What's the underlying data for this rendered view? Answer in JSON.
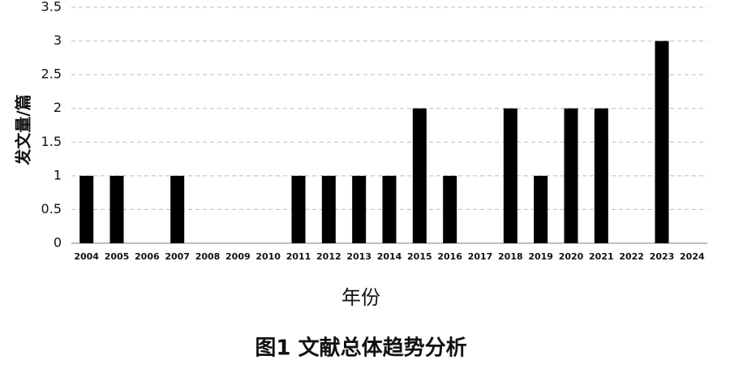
{
  "chart_data": {
    "type": "bar",
    "title": "图1 文献总体趋势分析",
    "x_label": "年份",
    "y_label": "发文量/篇",
    "categories": [
      "2004",
      "2005",
      "2006",
      "2007",
      "2008",
      "2009",
      "2010",
      "2011",
      "2012",
      "2013",
      "2014",
      "2015",
      "2016",
      "2017",
      "2018",
      "2019",
      "2020",
      "2021",
      "2022",
      "2023",
      "2024"
    ],
    "values": [
      1,
      1,
      0,
      1,
      0,
      0,
      0,
      1,
      1,
      1,
      1,
      2,
      1,
      0,
      2,
      1,
      2,
      2,
      0,
      3,
      0
    ],
    "color": "#000000",
    "ylim": [
      0,
      3.5
    ],
    "yticks": [
      0,
      0.5,
      1,
      1.5,
      2,
      2.5,
      3,
      3.5
    ],
    "grid": true
  }
}
